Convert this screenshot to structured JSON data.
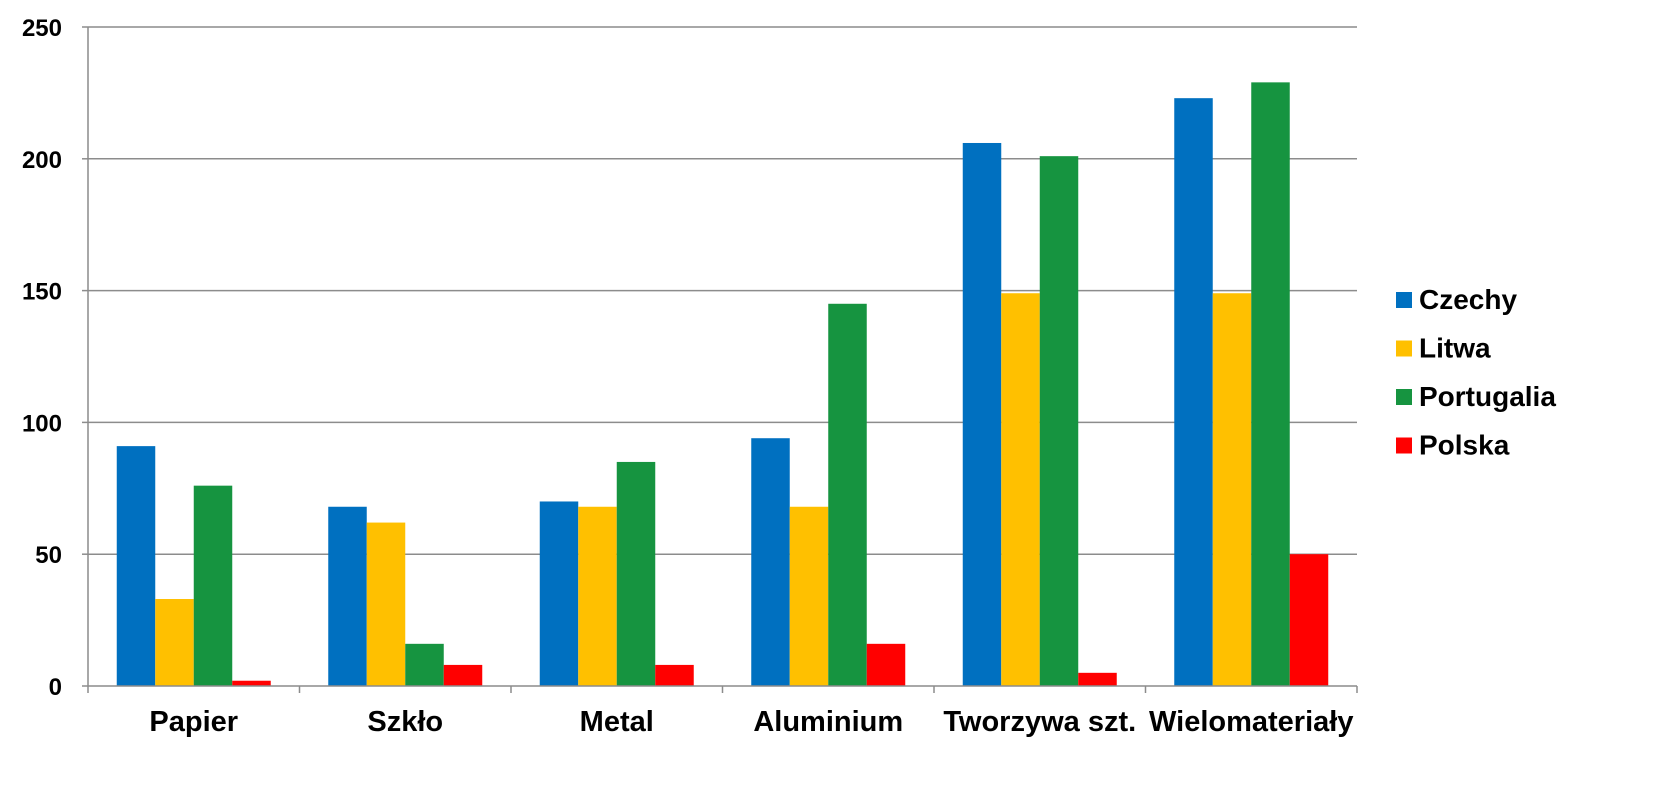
{
  "chart_data": {
    "type": "bar",
    "title": "",
    "xlabel": "",
    "ylabel": "",
    "ylim": [
      0,
      250
    ],
    "yticks": [
      0,
      50,
      100,
      150,
      200,
      250
    ],
    "grid": true,
    "legend_position": "right",
    "categories": [
      "Papier",
      "Szkło",
      "Metal",
      "Aluminium",
      "Tworzywa szt.",
      "Wielomateriały"
    ],
    "series": [
      {
        "name": "Czechy",
        "color": "#0070C0",
        "values": [
          91,
          68,
          70,
          94,
          206,
          223
        ]
      },
      {
        "name": "Litwa",
        "color": "#FFC000",
        "values": [
          33,
          62,
          68,
          68,
          149,
          149
        ]
      },
      {
        "name": "Portugalia",
        "color": "#169440",
        "values": [
          76,
          16,
          85,
          145,
          201,
          229
        ]
      },
      {
        "name": "Polska",
        "color": "#FF0000",
        "values": [
          2,
          8,
          8,
          16,
          5,
          50
        ]
      }
    ]
  }
}
